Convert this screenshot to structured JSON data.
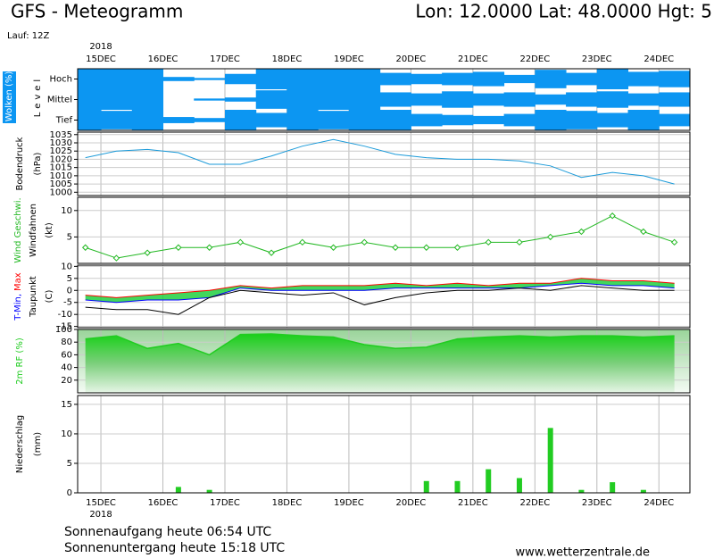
{
  "header": {
    "title": "GFS - Meteogramm",
    "location": "Lon: 12.0000 Lat: 48.0000 Hgt: 5",
    "run": "Lauf: 12Z"
  },
  "footer": {
    "sunrise": "Sonnenaufgang heute 06:54 UTC",
    "sunset": "Sonnenuntergang heute 15:18 UTC",
    "source": "www.wetterzentrale.de"
  },
  "chart_data": [
    {
      "type": "cloud-cover",
      "ylabel": [
        "Wolken (%)",
        "Level"
      ],
      "year": "2018",
      "xlim": [
        -0.375,
        9.5
      ],
      "xticks": [
        {
          "value": 0,
          "label": "15DEC"
        },
        {
          "value": 1,
          "label": "16DEC"
        },
        {
          "value": 2,
          "label": "17DEC"
        },
        {
          "value": 3,
          "label": "18DEC"
        },
        {
          "value": 4,
          "label": "19DEC"
        },
        {
          "value": 5,
          "label": "20DEC"
        },
        {
          "value": 6,
          "label": "21DEC"
        },
        {
          "value": 7,
          "label": "22DEC"
        },
        {
          "value": 8,
          "label": "23DEC"
        },
        {
          "value": 9,
          "label": "24DEC"
        }
      ],
      "x": [
        -0.25,
        0.25,
        0.75,
        1.25,
        1.75,
        2.25,
        2.75,
        3.25,
        3.75,
        4.25,
        4.75,
        5.25,
        5.75,
        6.25,
        6.75,
        7.25,
        7.75,
        8.25,
        8.75,
        9.25
      ],
      "series": [
        {
          "name": "Hoch",
          "color": "#0c96f2",
          "values": [
            100,
            100,
            100,
            20,
            10,
            50,
            100,
            100,
            100,
            100,
            60,
            50,
            60,
            70,
            40,
            90,
            60,
            100,
            70,
            80
          ]
        },
        {
          "name": "Mittel",
          "color": "#0c96f2",
          "values": [
            100,
            100,
            100,
            0,
            10,
            20,
            90,
            100,
            100,
            100,
            70,
            60,
            80,
            60,
            70,
            50,
            70,
            80,
            60,
            70
          ]
        },
        {
          "name": "Tief",
          "color": "#0c96f2",
          "values": [
            100,
            90,
            100,
            30,
            20,
            100,
            70,
            100,
            90,
            100,
            100,
            60,
            50,
            40,
            60,
            100,
            90,
            70,
            100,
            60
          ]
        }
      ]
    },
    {
      "type": "line",
      "ylabel": [
        "Bodendruck",
        "(hPa)"
      ],
      "ylim": [
        998,
        1036.5
      ],
      "yticks": [
        1000,
        1005,
        1010,
        1015,
        1020,
        1025,
        1030,
        1035
      ],
      "x": [
        -0.25,
        0.25,
        0.75,
        1.25,
        1.75,
        2.25,
        2.75,
        3.25,
        3.75,
        4.25,
        4.75,
        5.25,
        5.75,
        6.25,
        6.75,
        7.25,
        7.75,
        8.25,
        8.75,
        9.25
      ],
      "series": [
        {
          "color": "#1a9ad9",
          "values": [
            1021,
            1025,
            1026,
            1024,
            1017,
            1017,
            1022,
            1028,
            1032,
            1028,
            1023,
            1021,
            1020,
            1020,
            1019,
            1016,
            1009,
            1012,
            1010,
            1005
          ]
        }
      ]
    },
    {
      "type": "line",
      "ylabel": [
        "Windfahnen",
        "(kt)"
      ],
      "ylim": [
        0,
        12.5
      ],
      "yticks": [
        5,
        10
      ],
      "markers": true,
      "x": [
        -0.25,
        0.25,
        0.75,
        1.25,
        1.75,
        2.25,
        2.75,
        3.25,
        3.75,
        4.25,
        4.75,
        5.25,
        5.75,
        6.25,
        6.75,
        7.25,
        7.75,
        8.25,
        8.75,
        9.25
      ],
      "series": [
        {
          "name": "Wind Geschwi.",
          "color": "#22b822",
          "values": [
            3,
            1,
            2,
            3,
            3,
            4,
            2,
            4,
            3,
            4,
            3,
            3,
            3,
            4,
            4,
            5,
            6,
            9,
            6,
            4
          ]
        }
      ]
    },
    {
      "type": "line",
      "ylabel": [
        "(C)"
      ],
      "ylim": [
        -15.5,
        10.5
      ],
      "yticks": [
        -15,
        -10,
        -5,
        0,
        5,
        10
      ],
      "range_fill_color": "#20d040",
      "x": [
        -0.25,
        0.25,
        0.75,
        1.25,
        1.75,
        2.25,
        2.75,
        3.25,
        3.75,
        4.25,
        4.75,
        5.25,
        5.75,
        6.25,
        6.75,
        7.25,
        7.75,
        8.25,
        8.75,
        9.25
      ],
      "series": [
        {
          "name": "T-Min,",
          "color": "#0000ff",
          "values": [
            -4,
            -5,
            -4,
            -4,
            -3,
            1,
            0,
            0,
            0,
            0,
            1,
            1,
            1,
            1,
            1,
            2,
            3,
            2,
            2,
            1
          ]
        },
        {
          "name": "Max",
          "color": "#ff0000",
          "values": [
            -2,
            -3,
            -2,
            -1,
            0,
            2,
            1,
            2,
            2,
            2,
            3,
            2,
            3,
            2,
            3,
            3,
            5,
            4,
            4,
            3
          ]
        },
        {
          "name": "Taupunkt",
          "color": "#000000",
          "values": [
            -7,
            -8,
            -8,
            -10,
            -3,
            0,
            -1,
            -2,
            -1,
            -6,
            -3,
            -1,
            0,
            0,
            1,
            0,
            2,
            1,
            0,
            0
          ]
        }
      ]
    },
    {
      "type": "area",
      "ylim": [
        0,
        100
      ],
      "yticks": [
        20,
        40,
        60,
        80,
        100
      ],
      "x": [
        -0.25,
        0.25,
        0.75,
        1.25,
        1.75,
        2.25,
        2.75,
        3.25,
        3.75,
        4.25,
        4.75,
        5.25,
        5.75,
        6.25,
        6.75,
        7.25,
        7.75,
        8.25,
        8.75,
        9.25
      ],
      "series": [
        {
          "name": "2m RF (%)",
          "color": "#22cc22",
          "values": [
            85,
            90,
            70,
            78,
            60,
            92,
            93,
            90,
            88,
            76,
            70,
            72,
            85,
            88,
            90,
            88,
            90,
            90,
            88,
            90
          ]
        }
      ]
    },
    {
      "type": "bar",
      "ylabel": [
        "Niederschlag",
        "(mm)"
      ],
      "year": "2018",
      "ylim": [
        0,
        16.5
      ],
      "yticks": [
        0,
        5,
        10,
        15
      ],
      "xlim": [
        -0.375,
        9.5
      ],
      "xticks": [
        {
          "value": 0,
          "label": "15DEC"
        },
        {
          "value": 1,
          "label": "16DEC"
        },
        {
          "value": 2,
          "label": "17DEC"
        },
        {
          "value": 3,
          "label": "18DEC"
        },
        {
          "value": 4,
          "label": "19DEC"
        },
        {
          "value": 5,
          "label": "20DEC"
        },
        {
          "value": 6,
          "label": "21DEC"
        },
        {
          "value": 7,
          "label": "22DEC"
        },
        {
          "value": 8,
          "label": "23DEC"
        },
        {
          "value": 9,
          "label": "24DEC"
        }
      ],
      "x": [
        -0.25,
        0.25,
        0.75,
        1.25,
        1.75,
        2.25,
        2.75,
        3.25,
        3.75,
        4.25,
        4.75,
        5.25,
        5.75,
        6.25,
        6.75,
        7.25,
        7.75,
        8.25,
        8.75,
        9.25
      ],
      "series": [
        {
          "color": "#22cc22",
          "values": [
            0,
            0,
            0,
            1,
            0.5,
            0,
            0,
            0,
            0,
            0,
            0,
            2,
            2,
            4,
            2.5,
            11,
            0.5,
            1.8,
            0.5,
            0
          ]
        }
      ]
    }
  ]
}
